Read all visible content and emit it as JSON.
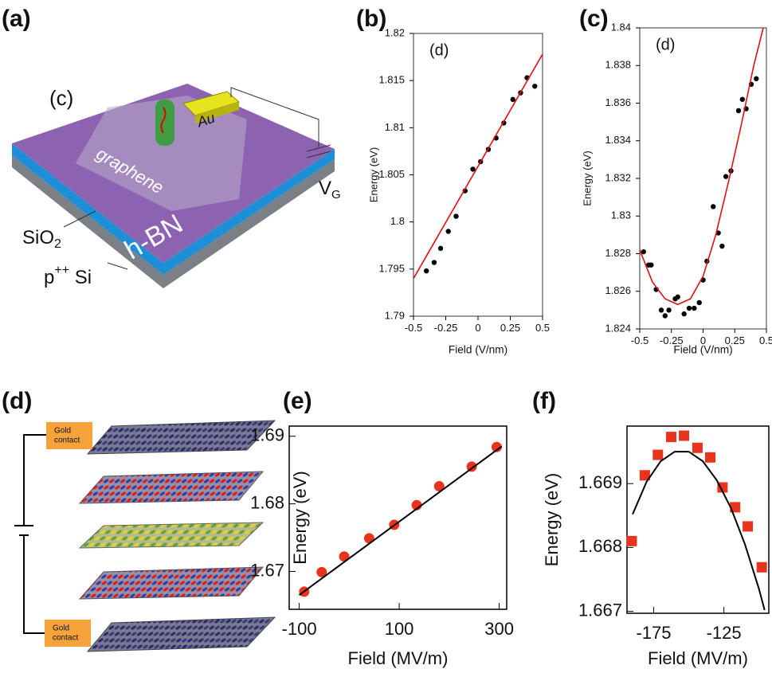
{
  "panel_a": {
    "panel_label": "(a)",
    "inner_label": "(c)",
    "electrode": "Au",
    "graphene": "graphene",
    "top_layer": "h-BN",
    "oxide": {
      "text": "SiO",
      "sub": "2"
    },
    "silicon": {
      "text": "p",
      "sup": "++",
      "rest": " Si"
    },
    "gate": {
      "text": "V",
      "sub": "G"
    }
  },
  "panel_d": {
    "panel_label": "(d)",
    "contact_top": [
      "Gold",
      "contact"
    ],
    "contact_bottom": [
      "Gold",
      "contact"
    ]
  },
  "chart_data": [
    {
      "type": "scatter",
      "panel_label": "(b)",
      "annotation": "(d)",
      "xlabel": "Field (V/nm)",
      "ylabel": "Energy (eV)",
      "xlim": [
        -0.5,
        0.5
      ],
      "ylim": [
        1.79,
        1.82
      ],
      "xticks": [
        -0.5,
        -0.25,
        0,
        0.25,
        0.5
      ],
      "yticks": [
        1.79,
        1.795,
        1.8,
        1.805,
        1.81,
        1.815,
        1.82
      ],
      "series": [
        {
          "style": "marker",
          "marker": "circle",
          "color": "#000000",
          "x": [
            -0.4,
            -0.34,
            -0.29,
            -0.23,
            -0.17,
            -0.1,
            -0.04,
            0.02,
            0.08,
            0.14,
            0.2,
            0.27,
            0.33,
            0.38,
            0.44
          ],
          "y": [
            1.7948,
            1.7957,
            1.7972,
            1.799,
            1.8006,
            1.8033,
            1.8056,
            1.8064,
            1.8077,
            1.8089,
            1.8105,
            1.813,
            1.8137,
            1.8153,
            1.8144
          ]
        },
        {
          "style": "line",
          "color": "#e01010",
          "x": [
            -0.5,
            0.5
          ],
          "y": [
            1.794,
            1.8178
          ]
        }
      ]
    },
    {
      "type": "scatter",
      "panel_label": "(c)",
      "annotation": "(d)",
      "xlabel": "Field (V/nm)",
      "ylabel": "Energy (eV)",
      "xlim": [
        -0.5,
        0.5
      ],
      "ylim": [
        1.824,
        1.84
      ],
      "xticks": [
        -0.5,
        -0.25,
        0,
        0.25,
        0.5
      ],
      "yticks": [
        1.824,
        1.826,
        1.828,
        1.83,
        1.832,
        1.834,
        1.836,
        1.838,
        1.84
      ],
      "series": [
        {
          "style": "marker",
          "marker": "circle",
          "color": "#000000",
          "x": [
            -0.47,
            -0.43,
            -0.41,
            -0.37,
            -0.33,
            -0.3,
            -0.27,
            -0.22,
            -0.2,
            -0.15,
            -0.11,
            -0.07,
            -0.03,
            0.0,
            0.03,
            0.08,
            0.12,
            0.15,
            0.18,
            0.22,
            0.28,
            0.31,
            0.34,
            0.38,
            0.42
          ],
          "y": [
            1.8281,
            1.8274,
            1.8274,
            1.8261,
            1.825,
            1.8247,
            1.825,
            1.8256,
            1.8257,
            1.8248,
            1.8251,
            1.8251,
            1.8254,
            1.8266,
            1.8276,
            1.8305,
            1.8291,
            1.8284,
            1.8321,
            1.8324,
            1.8356,
            1.8362,
            1.8357,
            1.837,
            1.8373
          ]
        },
        {
          "style": "line",
          "color": "#e01010",
          "x": [
            -0.5,
            -0.4,
            -0.3,
            -0.2,
            -0.1,
            0,
            0.1,
            0.2,
            0.3,
            0.4,
            0.475
          ],
          "y": [
            1.8282,
            1.8265,
            1.8256,
            1.8253,
            1.8256,
            1.8268,
            1.829,
            1.8318,
            1.8348,
            1.838,
            1.84
          ]
        }
      ]
    },
    {
      "type": "scatter",
      "panel_label": "(e)",
      "xlabel": "Field (MV/m)",
      "ylabel": "Energy (eV)",
      "xlim": [
        -120,
        315
      ],
      "ylim": [
        1.6644,
        1.6915
      ],
      "xticks": [
        -100,
        100,
        300
      ],
      "yticks": [
        1.67,
        1.68,
        1.69
      ],
      "series": [
        {
          "style": "marker",
          "marker": "circle",
          "color": "#e8341c",
          "x": [
            -90,
            -55,
            -10,
            40,
            90,
            135,
            180,
            245,
            295
          ],
          "y": [
            1.667,
            1.6699,
            1.6722,
            1.6749,
            1.6769,
            1.6798,
            1.6826,
            1.6855,
            1.6884
          ]
        },
        {
          "style": "line",
          "color": "#000000",
          "x": [
            -100,
            305
          ],
          "y": [
            1.6665,
            1.6885
          ]
        }
      ]
    },
    {
      "type": "scatter",
      "panel_label": "(f)",
      "xlabel": "Field (MV/m)",
      "ylabel": "Energy (eV)",
      "xlim": [
        -194,
        -93
      ],
      "ylim": [
        1.66697,
        1.6699
      ],
      "xticks": [
        -175,
        -125
      ],
      "yticks": [
        1.667,
        1.668,
        1.669
      ],
      "series": [
        {
          "style": "marker",
          "marker": "square",
          "color": "#e8341c",
          "x": [
            -190.6,
            -181.3,
            -172,
            -162.5,
            -153.4,
            -143.8,
            -134.7,
            -126,
            -117,
            -108,
            -98
          ],
          "y": [
            1.6681,
            1.66913,
            1.66945,
            1.66973,
            1.66975,
            1.66956,
            1.66941,
            1.66894,
            1.66863,
            1.66833,
            1.66769
          ]
        },
        {
          "style": "line",
          "color": "#000000",
          "x": [
            -190,
            -180,
            -170,
            -160,
            -150,
            -140,
            -130,
            -120,
            -110,
            -100,
            -96
          ],
          "y": [
            1.66852,
            1.66903,
            1.66935,
            1.6695,
            1.6695,
            1.66935,
            1.66905,
            1.66862,
            1.66805,
            1.66735,
            1.66702
          ]
        }
      ]
    }
  ]
}
